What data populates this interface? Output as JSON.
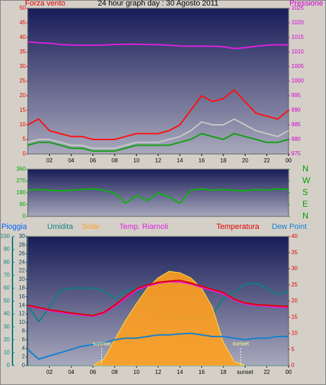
{
  "chart_data": [
    {
      "type": "line",
      "title": "24 hour graph day : 30 Agosto 2011",
      "y_label": "Forza vento",
      "y2_label": "Pressione",
      "y_color": "#e00000",
      "y2_color": "#d000d0",
      "x": [
        0,
        1,
        2,
        3,
        4,
        5,
        6,
        7,
        8,
        9,
        10,
        11,
        12,
        13,
        14,
        15,
        16,
        17,
        18,
        19,
        20,
        21,
        22,
        23,
        24
      ],
      "xlim": [
        0,
        24
      ],
      "xticks": [
        {
          "value": 2,
          "label": "02"
        },
        {
          "value": 4,
          "label": "04"
        },
        {
          "value": 6,
          "label": "06"
        },
        {
          "value": 8,
          "label": "08"
        },
        10,
        12,
        14,
        16,
        18,
        20,
        22,
        {
          "value": 24,
          "label": "00"
        }
      ],
      "ylim": [
        0,
        50
      ],
      "yticks": [
        0,
        5,
        10,
        15,
        20,
        25,
        30,
        35,
        40,
        45,
        50
      ],
      "y2lim": [
        975,
        1025
      ],
      "y2ticks": [
        975,
        980,
        985,
        990,
        995,
        1000,
        1005,
        1010,
        1015,
        1020,
        1025
      ],
      "series": [
        {
          "color": "#ff1010",
          "values": [
            10,
            12,
            8,
            7,
            6,
            6,
            5,
            5,
            5,
            6,
            7,
            7,
            7,
            8,
            10,
            15,
            20,
            18,
            19,
            22,
            18,
            14,
            13,
            12,
            15
          ]
        },
        {
          "color": "#c8c8c8",
          "values": [
            4,
            5,
            5,
            4,
            3,
            3,
            2,
            2,
            2,
            3,
            4,
            4,
            4,
            5,
            6,
            8,
            11,
            10,
            10,
            12,
            10,
            8,
            7,
            6,
            8
          ]
        },
        {
          "color": "#10a010",
          "values": [
            3,
            4,
            4,
            3,
            2,
            2,
            1,
            1,
            1,
            2,
            3,
            3,
            3,
            3,
            4,
            5,
            7,
            6,
            5,
            7,
            6,
            5,
            4,
            4,
            5
          ]
        },
        {
          "color": "#e020e0",
          "axis": "y2",
          "values": [
            1013.5,
            1013.2,
            1013,
            1012.6,
            1012.4,
            1012.3,
            1012.3,
            1012.4,
            1012.6,
            1012.7,
            1012.7,
            1012.6,
            1012.5,
            1012.3,
            1012.1,
            1012,
            1012,
            1012,
            1011.8,
            1011.2,
            1011.5,
            1012,
            1012.3,
            1012.5,
            1012.4
          ]
        }
      ]
    },
    {
      "type": "line",
      "y_color": "#00a000",
      "y2_color": "#00a000",
      "x": [
        0,
        1,
        2,
        3,
        4,
        5,
        6,
        7,
        8,
        9,
        10,
        11,
        12,
        13,
        14,
        15,
        16,
        17,
        18,
        19,
        20,
        21,
        22,
        23,
        24
      ],
      "xlim": [
        0,
        24
      ],
      "ylim": [
        0,
        360
      ],
      "yticks": [
        0,
        90,
        180,
        270,
        360
      ],
      "y2lim": [
        0,
        360
      ],
      "y2ticks": [
        {
          "value": 0,
          "label": "N"
        },
        {
          "value": 90,
          "label": "E"
        },
        {
          "value": 180,
          "label": "S"
        },
        {
          "value": 270,
          "label": "W"
        },
        {
          "value": 360,
          "label": "N"
        }
      ],
      "series": [
        {
          "color": "#10b010",
          "values": [
            200,
            205,
            200,
            195,
            200,
            205,
            210,
            200,
            180,
            100,
            160,
            120,
            180,
            150,
            100,
            200,
            210,
            200,
            205,
            200,
            195,
            205,
            200,
            210,
            205
          ]
        }
      ]
    },
    {
      "type": "line",
      "y_color": "#108080",
      "y2_color": "#e00000",
      "y3_color": "#104060",
      "x": [
        0,
        1,
        2,
        3,
        4,
        5,
        6,
        7,
        8,
        9,
        10,
        11,
        12,
        13,
        14,
        15,
        16,
        17,
        18,
        19,
        20,
        21,
        22,
        23,
        24
      ],
      "xlim": [
        0,
        24
      ],
      "xticks": [
        {
          "value": 2,
          "label": "02"
        },
        {
          "value": 4,
          "label": "04"
        },
        {
          "value": 6,
          "label": "06"
        },
        {
          "value": 8,
          "label": "08"
        },
        10,
        12,
        14,
        16,
        18,
        {
          "value": 20,
          "label": "sunset"
        },
        22,
        {
          "value": 24,
          "label": "00"
        }
      ],
      "ylim": [
        0,
        100
      ],
      "yticks": [
        0,
        10,
        20,
        30,
        40,
        50,
        60,
        70,
        80,
        90,
        100
      ],
      "y3lim": [
        0,
        30
      ],
      "y3ticks": [
        0,
        2,
        4,
        6,
        8,
        10,
        12,
        14,
        16,
        18,
        20,
        22,
        24,
        26,
        28,
        30
      ],
      "y2lim": [
        0,
        40
      ],
      "y2ticks": [
        0,
        5,
        10,
        15,
        20,
        25,
        30,
        35,
        40
      ],
      "annotations": [
        {
          "text": "sunrise",
          "x": 6.8
        },
        {
          "text": "sunset",
          "x": 19.6
        }
      ],
      "series": [
        {
          "name": "Pioggia",
          "color": "#0060ff",
          "axis": "y3",
          "values": [
            0,
            0,
            0,
            0,
            0,
            0,
            0,
            0,
            0,
            0,
            0,
            0,
            0,
            0,
            0,
            0,
            0,
            0,
            0,
            0,
            0,
            0,
            0,
            0,
            0
          ]
        },
        {
          "name": "Umidita",
          "color": "#108080",
          "values": [
            47,
            34,
            45,
            58,
            60,
            60,
            60,
            58,
            52,
            58,
            60,
            50,
            39,
            37,
            35,
            37,
            36,
            40,
            52,
            57,
            63,
            64,
            60,
            55,
            58
          ]
        },
        {
          "name": "Solar",
          "color": "#ffa020",
          "area": true,
          "values": [
            0,
            0,
            0,
            0,
            0,
            0,
            0,
            5,
            20,
            35,
            48,
            60,
            68,
            73,
            72,
            68,
            60,
            45,
            18,
            3,
            0,
            0,
            0,
            0,
            0
          ]
        },
        {
          "name": "Temp. Riarnoli",
          "color": "#e020e0",
          "axis": "y2",
          "values": [
            18.4,
            17.8,
            17,
            16.5,
            16,
            15.6,
            15.3,
            16.2,
            18.3,
            20.8,
            23.4,
            24.6,
            25.5,
            26,
            25.9,
            25.3,
            24.2,
            23.2,
            22.2,
            20.3,
            19.1,
            18.6,
            18.4,
            18.1,
            18
          ]
        },
        {
          "name": "Temperatura",
          "color": "#e00000",
          "axis": "y2",
          "values": [
            18.7,
            18,
            17.3,
            16.8,
            16.3,
            15.9,
            15.5,
            16.5,
            18.7,
            21.3,
            23.8,
            25,
            25.8,
            26.2,
            26.4,
            25.6,
            24.6,
            23.6,
            22.6,
            20.6,
            19.4,
            18.9,
            18.7,
            18.5,
            18.3
          ]
        },
        {
          "name": "Dew Point",
          "color": "#1080d0",
          "axis": "y2",
          "values": [
            5,
            2,
            3,
            4,
            5,
            6,
            6.5,
            7,
            8,
            8.5,
            8.5,
            9,
            9.5,
            9.5,
            9.8,
            10,
            9.5,
            9,
            9,
            8.5,
            8,
            8.5,
            8.5,
            9,
            9
          ]
        }
      ]
    }
  ]
}
